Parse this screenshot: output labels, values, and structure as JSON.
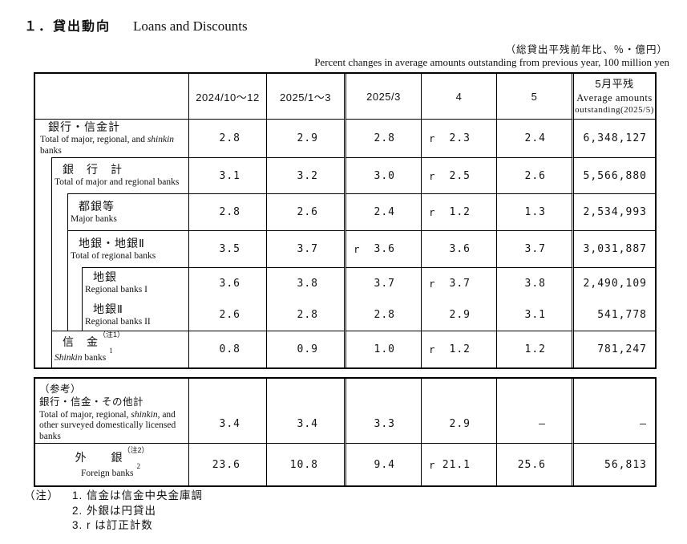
{
  "page": {
    "title_jp": "１．貸出動向",
    "title_en": "Loans and Discounts",
    "caption_right_jp": "（総貸出平残前年比、％・億円）",
    "caption_right_en": "Percent changes in average amounts outstanding from previous year, 100 million yen",
    "notes": {
      "prefix": "（注）",
      "items": [
        "1. 信金は信金中央金庫調",
        "2. 外銀は円貸出",
        "3. r は訂正計数"
      ]
    }
  },
  "table_main": {
    "col_headers": [
      "2024/10～12",
      "2025/1～3",
      "2025/3",
      "4",
      "5"
    ],
    "amount_col_header": {
      "jp": "5月平残",
      "en_line1": "Average amounts",
      "en_line2": "outstanding(2025/5)"
    },
    "rows": [
      {
        "top": true,
        "top_full": true,
        "pad": 6,
        "jp": "銀行・信金計",
        "en": "Total of major, regional, and *shinkin* banks",
        "values": [
          {
            "v": "2.8"
          },
          {
            "v": "2.9"
          },
          {
            "v": "2.8"
          },
          {
            "v": "2.3",
            "r": true
          },
          {
            "v": "2.4"
          }
        ],
        "amount": "6,348,127"
      },
      {
        "sep": 20,
        "top": true,
        "pad": 24,
        "jp": "銀　行　計",
        "en": "Total of major and regional banks",
        "values": [
          {
            "v": "3.1"
          },
          {
            "v": "3.2"
          },
          {
            "v": "3.0"
          },
          {
            "v": "2.5",
            "r": true
          },
          {
            "v": "2.6"
          }
        ],
        "amount": "5,566,880"
      },
      {
        "sep": 40,
        "top": true,
        "pad": 44,
        "jp": "都銀等",
        "en": "Major banks",
        "values": [
          {
            "v": "2.8"
          },
          {
            "v": "2.6"
          },
          {
            "v": "2.4"
          },
          {
            "v": "1.2",
            "r": true
          },
          {
            "v": "1.3"
          }
        ],
        "amount": "2,534,993"
      },
      {
        "sep": 40,
        "top": true,
        "pad": 44,
        "jp": "地銀・地銀Ⅱ",
        "en": "Total of regional banks",
        "values": [
          {
            "v": "3.5"
          },
          {
            "v": "3.7"
          },
          {
            "v": "3.6",
            "r": true
          },
          {
            "v": "3.6"
          },
          {
            "v": "3.7"
          }
        ],
        "amount": "3,031,887"
      },
      {
        "sep": 58,
        "top": true,
        "pad": 62,
        "jp": "地銀",
        "en": "Regional banks I",
        "values": [
          {
            "v": "3.6"
          },
          {
            "v": "3.8"
          },
          {
            "v": "3.7"
          },
          {
            "v": "3.7",
            "r": true
          },
          {
            "v": "3.8"
          }
        ],
        "amount": "2,490,109"
      },
      {
        "pad": 62,
        "jp": "地銀Ⅱ",
        "en": "Regional banks II",
        "values": [
          {
            "v": "2.6"
          },
          {
            "v": "2.8"
          },
          {
            "v": "2.8"
          },
          {
            "v": "2.9"
          },
          {
            "v": "3.1"
          }
        ],
        "amount": "541,778"
      },
      {
        "sep": 20,
        "top": true,
        "pad": 24,
        "jp": "信　金",
        "jp_sup": "（注1）",
        "en": "*Shinkin* banks",
        "en_sup": "1",
        "values": [
          {
            "v": "0.8"
          },
          {
            "v": "0.9"
          },
          {
            "v": "1.0"
          },
          {
            "v": "1.2",
            "r": true
          },
          {
            "v": "1.2"
          }
        ],
        "amount": "781,247"
      }
    ]
  },
  "table_reference": {
    "rows": [
      {
        "pad": 5,
        "flat": true,
        "top_align": true,
        "low": true,
        "jp_line0": "（参考）",
        "jp": "銀行・信金・その他計",
        "small_jp": true,
        "en": "Total of major, regional, *shinkin*, and other surveyed domestically licensed banks",
        "values": [
          {
            "v": "3.4"
          },
          {
            "v": "3.4"
          },
          {
            "v": "3.3"
          },
          {
            "v": "2.9"
          },
          {
            "v": "—"
          }
        ],
        "amount": "—"
      },
      {
        "top": true,
        "top_full": true,
        "center": true,
        "flat": true,
        "pad": 0,
        "jp": "外　　銀",
        "jp_sup": "（注2）",
        "en": "Foreign banks",
        "en_sup": "2",
        "values": [
          {
            "v": "23.6"
          },
          {
            "v": "10.8"
          },
          {
            "v": "9.4"
          },
          {
            "v": "21.1",
            "r": true
          },
          {
            "v": "25.6"
          }
        ],
        "amount": "56,813"
      }
    ]
  }
}
